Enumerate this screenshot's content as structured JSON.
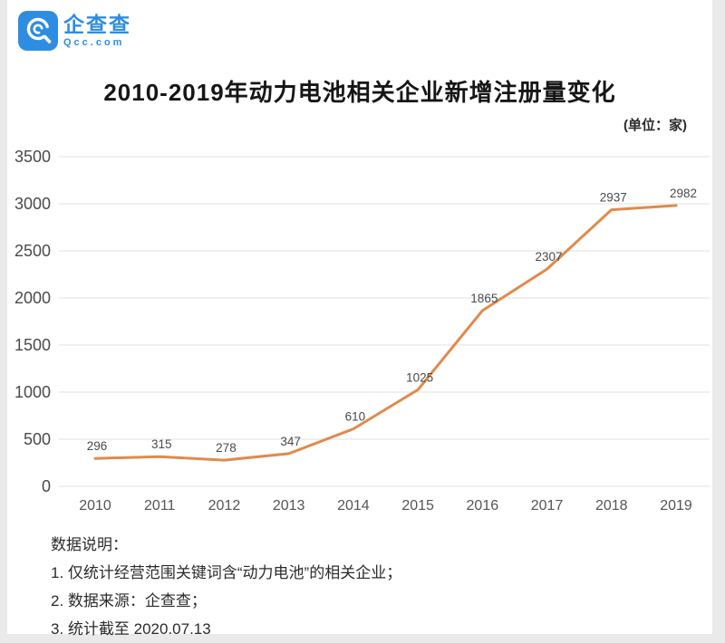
{
  "brand": {
    "name": "企查查",
    "domain": "Qcc.com",
    "color": "#2E8DE0"
  },
  "header": {
    "title": "2010-2019年动力电池相关企业新增注册量变化",
    "unit_label": "(单位：家)"
  },
  "chart_data": {
    "type": "line",
    "title": "2010-2019年动力电池相关企业新增注册量变化",
    "categories": [
      "2010",
      "2011",
      "2012",
      "2013",
      "2014",
      "2015",
      "2016",
      "2017",
      "2018",
      "2019"
    ],
    "values": [
      296,
      315,
      278,
      347,
      610,
      1025,
      1865,
      2307,
      2937,
      2982
    ],
    "xlabel": "",
    "ylabel": "",
    "ylim": [
      0,
      3500
    ],
    "ytick_step": 500,
    "grid": true,
    "legend_position": "none",
    "line_color": "#E08A4C",
    "grid_color": "#ececec",
    "tick_color": "#4a4a4a",
    "point_label_color": "#4a4a4a"
  },
  "notes": {
    "heading": "数据说明：",
    "items": [
      "1. 仅统计经营范围关键词含“动力电池”的相关企业；",
      "2. 数据来源：企查查；",
      "3. 统计截至 2020.07.13"
    ]
  }
}
